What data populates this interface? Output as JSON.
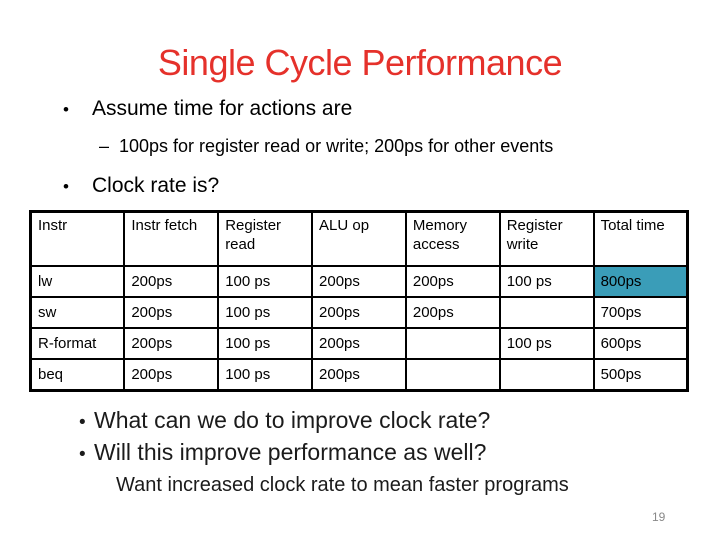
{
  "slide": {
    "title": "Single Cycle Performance",
    "top_bullets": {
      "assume": "Assume time for actions are",
      "timing_detail": "100ps for register read or write; 200ps for other events",
      "clock_rate": "Clock rate is?"
    },
    "table": {
      "headers": [
        "Instr",
        "Instr fetch",
        "Register read",
        "ALU op",
        "Memory access",
        "Register write",
        "Total time"
      ],
      "rows": [
        [
          "lw",
          "200ps",
          "100 ps",
          "200ps",
          "200ps",
          "100 ps",
          "800ps"
        ],
        [
          "sw",
          "200ps",
          "100 ps",
          "200ps",
          "200ps",
          "",
          "700ps"
        ],
        [
          "R-format",
          "200ps",
          "100 ps",
          "200ps",
          "",
          "100 ps",
          "600ps"
        ],
        [
          "beq",
          "200ps",
          "100 ps",
          "200ps",
          "",
          "",
          "500ps"
        ]
      ],
      "highlighted_cell": {
        "row": "lw",
        "column": "Total time",
        "value": "800ps"
      }
    },
    "bottom_bullets": {
      "improve_clock": "What can we do to improve clock rate?",
      "improve_perf": "Will this improve performance as well?"
    },
    "footnote": "Want increased clock rate to mean faster programs",
    "page_number": "19"
  },
  "glyphs": {
    "bullet": "•",
    "dash": "–"
  },
  "colors": {
    "title": "#E5312B",
    "highlight": "#3A9DB8",
    "page_number": "#898989"
  }
}
